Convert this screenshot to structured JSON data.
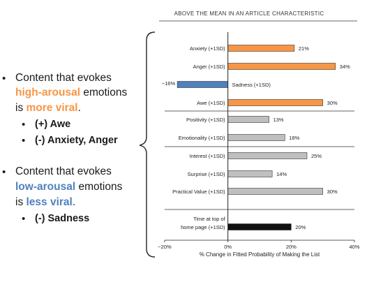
{
  "bullets": {
    "high": {
      "line1": "Content that evokes",
      "line2_highlight": "high-arousal",
      "line2_rest": " emotions",
      "line3_pre": "is ",
      "line3_highlight": "more viral",
      "line3_post": ".",
      "subs": [
        "(+) Awe",
        "(-) Anxiety, Anger"
      ]
    },
    "low": {
      "line1": "Content that evokes",
      "line2_highlight": "low-arousal",
      "line2_rest": " emotions",
      "line3_pre": "is ",
      "line3_highlight": "less viral",
      "line3_post": ".",
      "subs": [
        "(-) Sadness"
      ]
    }
  },
  "colors": {
    "orange": "#f79646",
    "blue": "#4f81bd",
    "gray": "#bfbfbf",
    "black": "#111111"
  },
  "chart_data": {
    "type": "bar",
    "orientation": "horizontal",
    "title": "ABOVE THE MEAN IN AN ARTICLE CHARACTERISTIC",
    "xlabel": "% Change in Fitted Probability of Making the List",
    "ylabel": "",
    "xlim": [
      -20,
      40
    ],
    "xticks": [
      "−20%",
      "0%",
      "20%",
      "40%"
    ],
    "grid": false,
    "groups": [
      {
        "rows": [
          {
            "label": "Anxiety (+1SD)",
            "value": 21,
            "value_label": "21%",
            "color": "orange"
          },
          {
            "label": "Anger (+1SD)",
            "value": 34,
            "value_label": "34%",
            "color": "orange"
          },
          {
            "label": "Sadness (+1SD)",
            "value": -16,
            "value_label": "−16%",
            "color": "blue"
          },
          {
            "label": "Awe (+1SD)",
            "value": 30,
            "value_label": "30%",
            "color": "orange"
          }
        ]
      },
      {
        "rows": [
          {
            "label": "Positivity (+1SD)",
            "value": 13,
            "value_label": "13%",
            "color": "gray"
          },
          {
            "label": "Emotionality (+1SD)",
            "value": 18,
            "value_label": "18%",
            "color": "gray"
          }
        ]
      },
      {
        "rows": [
          {
            "label": "Interest (+1SD)",
            "value": 25,
            "value_label": "25%",
            "color": "gray"
          },
          {
            "label": "Surprise (+1SD)",
            "value": 14,
            "value_label": "14%",
            "color": "gray"
          },
          {
            "label": "Practical Value (+1SD)",
            "value": 30,
            "value_label": "30%",
            "color": "gray"
          }
        ]
      },
      {
        "rows": [
          {
            "label_lines": [
              "Time at top of",
              "home page (+1SD)"
            ],
            "value": 20,
            "value_label": "20%",
            "color": "black"
          }
        ]
      }
    ]
  }
}
